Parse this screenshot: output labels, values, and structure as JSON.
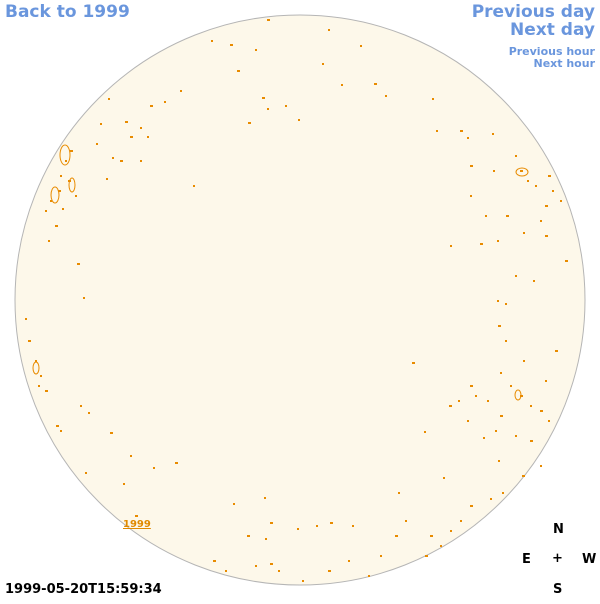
{
  "nav": {
    "back": "Back to 1999",
    "previous_day": "Previous day",
    "next_day": "Next day",
    "previous_hour": "Previous hour",
    "next_hour": "Next hour"
  },
  "disk": {
    "fill": "#fdf8ea",
    "outline": "#b5b5b5",
    "contour_color": "#e88b00"
  },
  "year_label": "1999",
  "timestamp": "1999-05-20T15:59:34",
  "compass": {
    "north": "N",
    "east": "E",
    "center": "+",
    "west": "W",
    "south": "S"
  }
}
